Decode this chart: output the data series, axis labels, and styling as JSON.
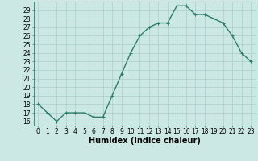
{
  "x": [
    0,
    1,
    2,
    3,
    4,
    5,
    6,
    7,
    8,
    9,
    10,
    11,
    12,
    13,
    14,
    15,
    16,
    17,
    18,
    19,
    20,
    21,
    22,
    23
  ],
  "y": [
    18,
    17,
    16,
    17,
    17,
    17,
    16.5,
    16.5,
    19,
    21.5,
    24,
    26,
    27,
    27.5,
    27.5,
    29.5,
    29.5,
    28.5,
    28.5,
    28,
    27.5,
    26,
    24,
    23
  ],
  "line_color": "#2e7d6b",
  "marker_color": "#2e7d6b",
  "bg_color": "#cce8e4",
  "grid_color": "#aacfcc",
  "xlabel": "Humidex (Indice chaleur)",
  "ylim": [
    15.5,
    30.0
  ],
  "xlim": [
    -0.5,
    23.5
  ],
  "yticks": [
    16,
    17,
    18,
    19,
    20,
    21,
    22,
    23,
    24,
    25,
    26,
    27,
    28,
    29
  ],
  "xticks": [
    0,
    1,
    2,
    3,
    4,
    5,
    6,
    7,
    8,
    9,
    10,
    11,
    12,
    13,
    14,
    15,
    16,
    17,
    18,
    19,
    20,
    21,
    22,
    23
  ],
  "tick_label_fontsize": 5.5,
  "xlabel_fontsize": 7.0,
  "line_width": 1.0,
  "marker_size": 3.0
}
